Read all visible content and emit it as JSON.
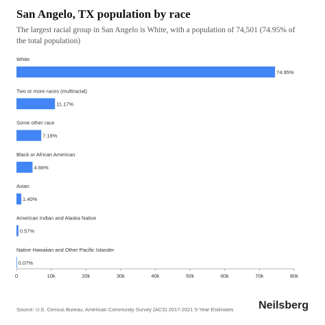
{
  "header": {
    "title": "San Angelo, TX population by race",
    "subtitle": "The largest racial group in San Angelo is White, with a population of 74,501 (74.95% of the total population)"
  },
  "footer": {
    "source": "Source: U.S. Census Bureau, American Community Survey (ACS) 2017-2021 5-Year Estimates",
    "brand": "Neilsberg"
  },
  "chart_data": {
    "type": "bar",
    "orientation": "horizontal",
    "title": "San Angelo, TX population by race",
    "categories": [
      "White",
      "Two or more races (multiracial)",
      "Some other race",
      "Black or African American",
      "Asian",
      "American Indian and Alaska Native",
      "Native Hawaiian and Other Pacific Islander"
    ],
    "values": [
      74501,
      11103,
      7137,
      4632,
      1392,
      567,
      70
    ],
    "value_labels": [
      "74.95%",
      "11.17%",
      "7.18%",
      "4.66%",
      "1.40%",
      "0.57%",
      "0.07%"
    ],
    "xlim": [
      0,
      80000
    ],
    "xticks": [
      0,
      10000,
      20000,
      30000,
      40000,
      50000,
      60000,
      70000,
      80000
    ],
    "xtick_labels": [
      "0",
      "10k",
      "20k",
      "30k",
      "40k",
      "50k",
      "60k",
      "70k",
      "80k"
    ],
    "grid": false,
    "bar_color": "#4285f4"
  }
}
